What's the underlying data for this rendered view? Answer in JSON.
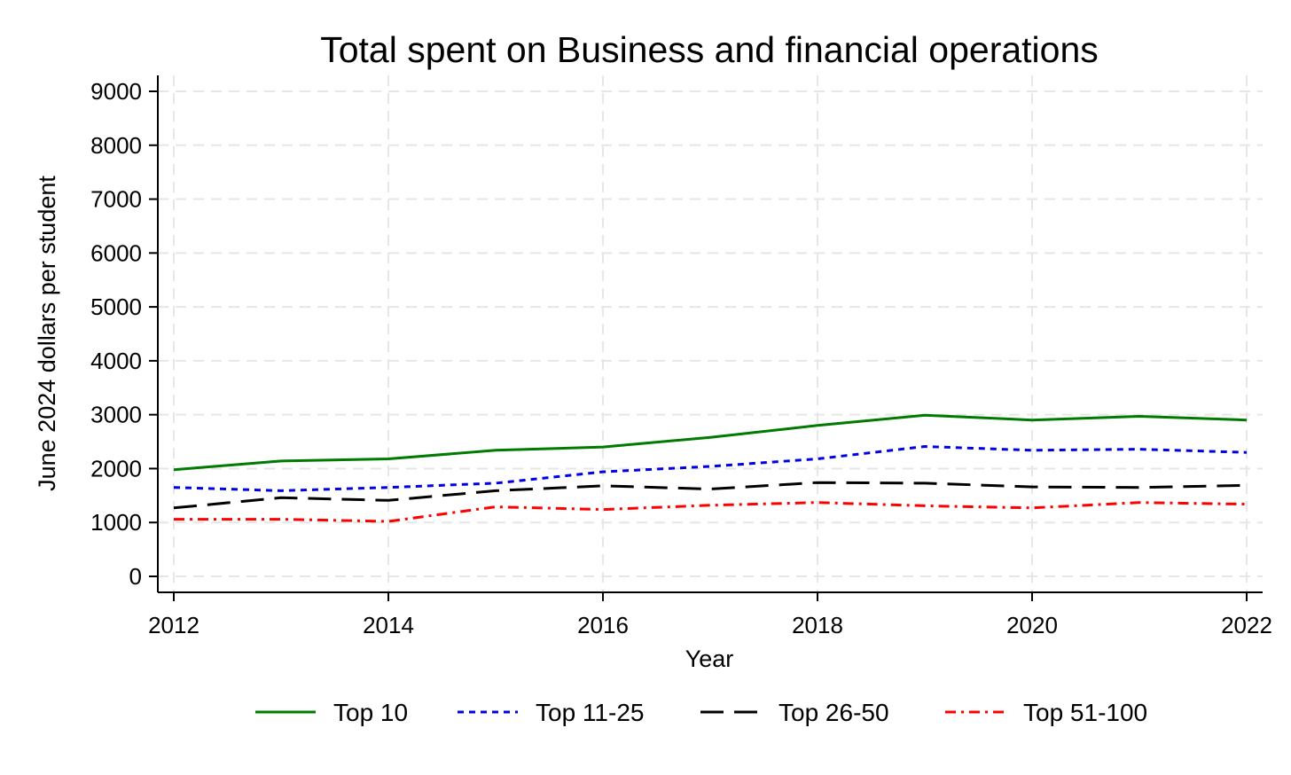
{
  "chart_data": {
    "type": "line",
    "title": "Total spent on Business and financial operations",
    "xlabel": "Year",
    "ylabel": "June 2024 dollars per student",
    "x": [
      2012,
      2013,
      2014,
      2015,
      2016,
      2017,
      2018,
      2019,
      2020,
      2021,
      2022
    ],
    "xticks": [
      "2012",
      "2014",
      "2016",
      "2018",
      "2020",
      "2022"
    ],
    "yticks": [
      "0",
      "1000",
      "2000",
      "3000",
      "4000",
      "5000",
      "6000",
      "7000",
      "8000",
      "9000"
    ],
    "xlim": [
      2012,
      2022
    ],
    "ylim": [
      0,
      9000
    ],
    "grid": true,
    "legend_position": "bottom",
    "series": [
      {
        "name": "Top 10",
        "color": "#007a00",
        "style": "solid",
        "values": [
          1980,
          2140,
          2180,
          2340,
          2400,
          2580,
          2800,
          2990,
          2900,
          2970,
          2900
        ]
      },
      {
        "name": "Top 11-25",
        "color": "#0000e6",
        "style": "dotted",
        "values": [
          1650,
          1590,
          1650,
          1730,
          1940,
          2040,
          2180,
          2410,
          2340,
          2360,
          2300
        ]
      },
      {
        "name": "Top 26-50",
        "color": "#000000",
        "style": "longdash",
        "values": [
          1270,
          1460,
          1410,
          1590,
          1680,
          1620,
          1740,
          1730,
          1660,
          1650,
          1690
        ]
      },
      {
        "name": "Top 51-100",
        "color": "#ff0000",
        "style": "dashdot",
        "values": [
          1060,
          1060,
          1020,
          1290,
          1240,
          1320,
          1370,
          1310,
          1270,
          1370,
          1340
        ]
      }
    ]
  }
}
